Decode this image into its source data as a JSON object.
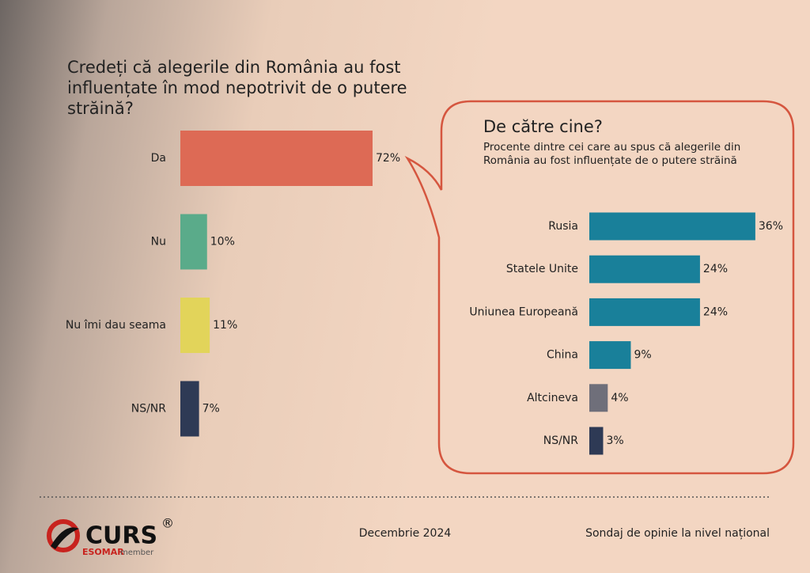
{
  "chart_data": [
    {
      "type": "bar",
      "orientation": "horizontal",
      "title": "Credeți că alegerile din România au fost influențate în mod nepotrivit de o putere străină?",
      "categories": [
        "Da",
        "Nu",
        "Nu îmi dau seama",
        "NS/NR"
      ],
      "values": [
        72,
        10,
        11,
        7
      ],
      "value_labels": [
        "72%",
        "10%",
        "11%",
        "7%"
      ],
      "colors": [
        "#dd6a55",
        "#5aab8a",
        "#e2d45a",
        "#2e3a55"
      ]
    },
    {
      "type": "bar",
      "orientation": "horizontal",
      "title": "De către cine?",
      "subtitle": "Procente dintre cei care au spus că alegerile din România au fost influențate de o putere străină",
      "categories": [
        "Rusia",
        "Statele Unite",
        "Uniunea Europeană",
        "China",
        "Altcineva",
        "NS/NR"
      ],
      "values": [
        36,
        24,
        24,
        9,
        4,
        3
      ],
      "value_labels": [
        "36%",
        "24%",
        "24%",
        "9%",
        "4%",
        "3%"
      ],
      "colors": [
        "#19809a",
        "#19809a",
        "#19809a",
        "#19809a",
        "#6f6f7a",
        "#2e3a55"
      ]
    }
  ],
  "footer": {
    "brand": "CURS",
    "registered": "®",
    "esomar": "ESOMAR",
    "member": "member",
    "date": "Decembrie 2024",
    "description": "Sondaj de opinie la nivel național"
  }
}
